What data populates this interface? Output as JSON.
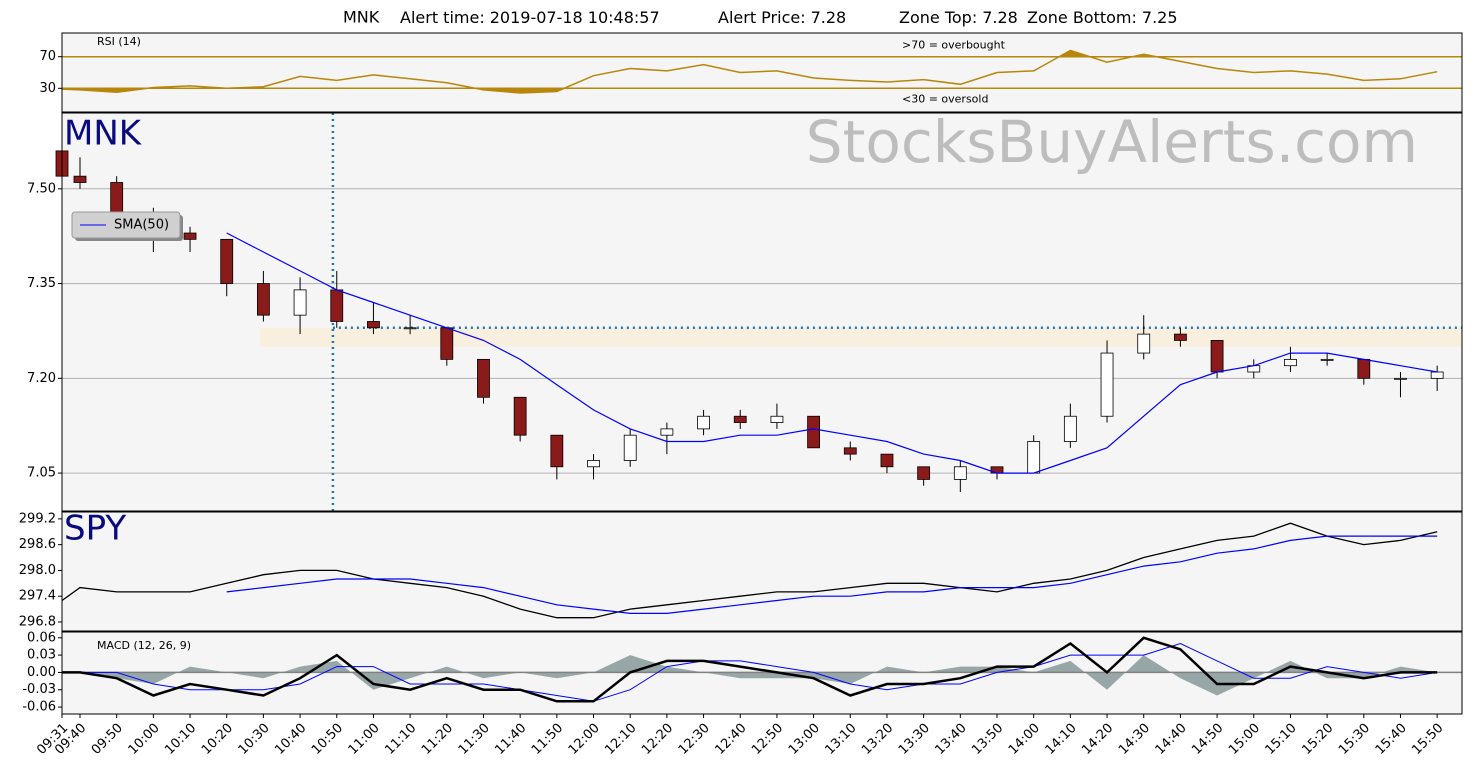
{
  "header": {
    "symbol": "MNK",
    "alert_time_label": "Alert time:",
    "alert_time": "2019-07-18 10:48:57",
    "alert_price_label": "Alert Price:",
    "alert_price": 7.28,
    "zone_top_label": "Zone Top:",
    "zone_top": 7.28,
    "zone_bottom_label": "Zone Bottom:",
    "zone_bottom": 7.25
  },
  "chart_data": [
    {
      "type": "rsi",
      "title": "RSI (14)",
      "annotations": [
        ">70 = overbought",
        "<30 = oversold"
      ],
      "values": [
        29,
        28,
        25,
        31,
        33,
        30,
        32,
        45,
        40,
        47,
        42,
        37,
        28,
        24,
        26,
        46,
        55,
        52,
        60,
        50,
        52,
        43,
        40,
        38,
        41,
        35,
        50,
        52,
        78,
        63,
        73,
        64,
        55,
        50,
        52,
        48,
        40,
        42,
        51
      ],
      "color": "#b8860b",
      "ylim": [
        0,
        100
      ],
      "yticks": [
        30,
        70
      ]
    },
    {
      "type": "candlestick",
      "title": "MNK",
      "watermark": "StocksBuyAlerts.com",
      "open": [
        7.56,
        7.52,
        7.51,
        7.45,
        7.43,
        7.42,
        7.35,
        7.3,
        7.34,
        7.29,
        7.28,
        7.28,
        7.23,
        7.17,
        7.11,
        7.06,
        7.07,
        7.11,
        7.12,
        7.14,
        7.13,
        7.14,
        7.09,
        7.08,
        7.06,
        7.04,
        7.06,
        7.05,
        7.1,
        7.14,
        7.24,
        7.27,
        7.26,
        7.21,
        7.22,
        7.23,
        7.23,
        7.2,
        7.2
      ],
      "high": [
        7.6,
        7.55,
        7.52,
        7.47,
        7.44,
        7.42,
        7.37,
        7.36,
        7.37,
        7.32,
        7.3,
        7.28,
        7.23,
        7.17,
        7.11,
        7.08,
        7.12,
        7.13,
        7.15,
        7.15,
        7.16,
        7.14,
        7.1,
        7.08,
        7.06,
        7.07,
        7.06,
        7.11,
        7.16,
        7.26,
        7.3,
        7.28,
        7.26,
        7.23,
        7.25,
        7.24,
        7.23,
        7.21,
        7.22
      ],
      "low": [
        7.5,
        7.5,
        7.43,
        7.4,
        7.4,
        7.33,
        7.29,
        7.27,
        7.28,
        7.27,
        7.27,
        7.22,
        7.16,
        7.1,
        7.04,
        7.04,
        7.06,
        7.08,
        7.11,
        7.12,
        7.12,
        7.09,
        7.07,
        7.05,
        7.03,
        7.02,
        7.04,
        7.05,
        7.09,
        7.13,
        7.23,
        7.25,
        7.2,
        7.2,
        7.21,
        7.22,
        7.19,
        7.17,
        7.18
      ],
      "close": [
        7.52,
        7.51,
        7.45,
        7.43,
        7.42,
        7.35,
        7.3,
        7.34,
        7.29,
        7.28,
        7.28,
        7.23,
        7.17,
        7.11,
        7.06,
        7.07,
        7.11,
        7.12,
        7.14,
        7.13,
        7.14,
        7.09,
        7.08,
        7.06,
        7.04,
        7.06,
        7.05,
        7.1,
        7.14,
        7.24,
        7.27,
        7.26,
        7.21,
        7.22,
        7.23,
        7.23,
        7.2,
        7.2,
        7.21
      ],
      "up_color": "#ffffff",
      "down_color": "#8b1a1a",
      "series": [
        {
          "name": "SMA(50)",
          "color": "#0000ff",
          "values": [
            null,
            null,
            null,
            null,
            null,
            7.43,
            7.4,
            7.37,
            7.34,
            7.32,
            7.3,
            7.28,
            7.26,
            7.23,
            7.19,
            7.15,
            7.12,
            7.1,
            7.1,
            7.11,
            7.11,
            7.12,
            7.11,
            7.1,
            7.08,
            7.07,
            7.05,
            7.05,
            7.07,
            7.09,
            7.14,
            7.19,
            7.21,
            7.22,
            7.24,
            7.24,
            7.23,
            7.22,
            7.21
          ]
        }
      ],
      "legend": "center left",
      "ylim": [
        6.99,
        7.62
      ],
      "yticks": [
        7.05,
        {
          "value": 7.2,
          "label": "7.20"
        },
        7.35,
        {
          "value": 7.5,
          "label": "7.50"
        }
      ],
      "grid": true,
      "alert_color": "#1f77b4",
      "zone_color": "#f8efdf"
    },
    {
      "type": "line",
      "title": "SPY",
      "values": [
        297.3,
        297.6,
        297.5,
        297.5,
        297.5,
        297.7,
        297.9,
        298.0,
        298.0,
        297.8,
        297.7,
        297.6,
        297.4,
        297.1,
        296.9,
        296.9,
        297.1,
        297.2,
        297.3,
        297.4,
        297.5,
        297.5,
        297.6,
        297.7,
        297.7,
        297.6,
        297.5,
        297.7,
        297.8,
        298.0,
        298.3,
        298.5,
        298.7,
        298.8,
        299.1,
        298.8,
        298.6,
        298.7,
        298.9
      ],
      "color": "#000000",
      "sma": [
        null,
        null,
        null,
        null,
        null,
        297.5,
        297.6,
        297.7,
        297.8,
        297.8,
        297.8,
        297.7,
        297.6,
        297.4,
        297.2,
        297.1,
        297.0,
        297.0,
        297.1,
        297.2,
        297.3,
        297.4,
        297.4,
        297.5,
        297.5,
        297.6,
        297.6,
        297.6,
        297.7,
        297.9,
        298.1,
        298.2,
        298.4,
        298.5,
        298.7,
        298.8,
        298.8,
        298.8,
        298.8
      ],
      "sma_color": "#0000ff",
      "ylim": [
        296.59,
        299.36
      ],
      "yticks": [
        296.8,
        297.4,
        {
          "value": 298,
          "label": "298.0"
        },
        298.6,
        299.2
      ]
    },
    {
      "type": "macd",
      "title": "MACD (12, 26, 9)",
      "categories": [
        "09:31",
        "09:40",
        "09:50",
        "10:00",
        "10:10",
        "10:20",
        "10:30",
        "10:40",
        "10:50",
        "11:00",
        "11:10",
        "11:20",
        "11:30",
        "11:40",
        "11:50",
        "12:00",
        "12:10",
        "12:20",
        "12:30",
        "12:40",
        "12:50",
        "13:00",
        "13:10",
        "13:20",
        "13:30",
        "13:40",
        "13:50",
        "14:00",
        "14:10",
        "14:20",
        "14:30",
        "14:40",
        "14:50",
        "15:00",
        "15:10",
        "15:20",
        "15:30",
        "15:40",
        "15:50"
      ],
      "macd": [
        0.0,
        0.0,
        -0.01,
        -0.04,
        -0.02,
        -0.03,
        -0.04,
        -0.01,
        0.03,
        -0.02,
        -0.03,
        -0.01,
        -0.03,
        -0.03,
        -0.05,
        -0.05,
        0.0,
        0.02,
        0.02,
        0.01,
        0.0,
        -0.01,
        -0.04,
        -0.02,
        -0.02,
        -0.01,
        0.01,
        0.01,
        0.05,
        0.0,
        0.06,
        0.04,
        -0.02,
        -0.02,
        0.01,
        0.0,
        -0.01,
        0.0,
        0.0
      ],
      "macd_color": "#000000",
      "signal": [
        0.0,
        0.0,
        0.0,
        -0.02,
        -0.03,
        -0.03,
        -0.03,
        -0.02,
        0.01,
        0.01,
        -0.02,
        -0.02,
        -0.02,
        -0.03,
        -0.04,
        -0.05,
        -0.03,
        0.01,
        0.02,
        0.02,
        0.01,
        0.0,
        -0.02,
        -0.03,
        -0.02,
        -0.02,
        0.0,
        0.01,
        0.03,
        0.03,
        0.03,
        0.05,
        0.02,
        -0.01,
        -0.01,
        0.01,
        0.0,
        -0.01,
        0.0
      ],
      "signal_color": "#0000ff",
      "histogram": [
        0.0,
        0.0,
        -0.01,
        -0.02,
        0.01,
        0.0,
        -0.01,
        0.01,
        0.02,
        -0.03,
        -0.01,
        0.01,
        -0.01,
        0.0,
        -0.01,
        0.0,
        0.03,
        0.01,
        0.0,
        -0.01,
        -0.01,
        -0.01,
        -0.02,
        0.01,
        0.0,
        0.01,
        0.01,
        0.0,
        0.02,
        -0.03,
        0.03,
        -0.01,
        -0.04,
        -0.01,
        0.02,
        -0.01,
        -0.01,
        0.01,
        0.0
      ],
      "histogram_color": "#7f9494",
      "ylim": [
        -0.072,
        0.07
      ],
      "yticks": [
        0.06,
        0.03,
        {
          "value": 0,
          "label": "0.00"
        },
        -0.03,
        -0.06
      ]
    }
  ]
}
